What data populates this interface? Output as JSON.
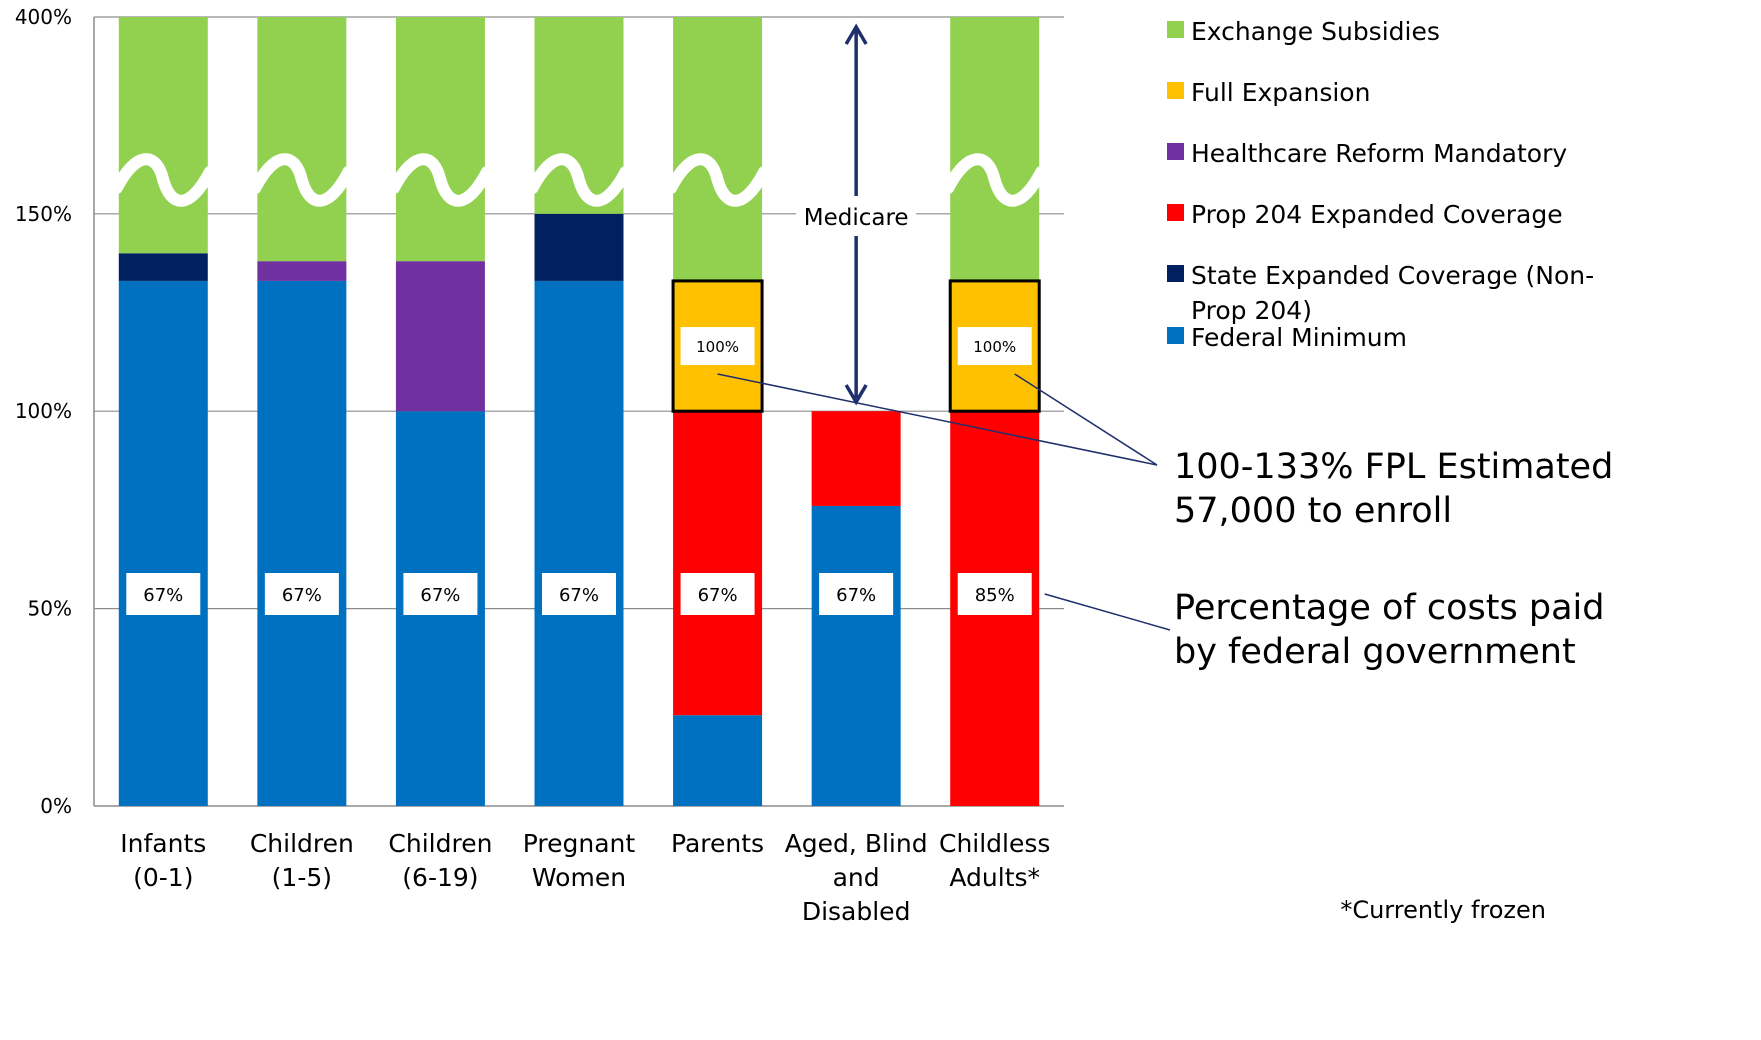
{
  "chart_data": {
    "type": "bar",
    "stacked": true,
    "categories": [
      [
        "Infants",
        "(0-1)"
      ],
      [
        "Children",
        "(1-5)"
      ],
      [
        "Children",
        "(6-19)"
      ],
      [
        "Pregnant",
        "Women"
      ],
      [
        "Parents"
      ],
      [
        "Aged, Blind",
        "and",
        "Disabled"
      ],
      [
        "Childless",
        "Adults*"
      ]
    ],
    "y_ticks": [
      "0%",
      "50%",
      "100%",
      "150%",
      "400%"
    ],
    "y_scale": "broken axis: 0-150% linear, axis break, top labeled 400%",
    "grid": true,
    "legend_position": "right",
    "series": [
      {
        "name": "Federal Minimum",
        "color": "#0070C0",
        "values": [
          133,
          133,
          100,
          133,
          23,
          76,
          0
        ]
      },
      {
        "name": "State Expanded Coverage (Non-Prop 204)",
        "color": "#002060",
        "values": [
          7,
          0,
          0,
          17,
          0,
          0,
          0
        ]
      },
      {
        "name": "Prop 204 Expanded Coverage",
        "color": "#FF0000",
        "values": [
          0,
          0,
          0,
          0,
          77,
          24,
          100
        ]
      },
      {
        "name": "Healthcare Reform Mandatory",
        "color": "#7030A0",
        "values": [
          0,
          5,
          38,
          0,
          0,
          0,
          0
        ]
      },
      {
        "name": "Full Expansion",
        "color": "#FFC000",
        "values": [
          0,
          0,
          0,
          0,
          33,
          0,
          33
        ]
      },
      {
        "name": "Exchange Subsidies",
        "color": "#92D050",
        "values": [
          260,
          262,
          262,
          250,
          267,
          0,
          267
        ]
      }
    ],
    "legend_order": [
      "Exchange Subsidies",
      "Full Expansion",
      "Healthcare Reform Mandatory",
      "Prop 204 Expanded Coverage",
      [
        "State Expanded Coverage (Non-",
        "Prop 204)"
      ],
      "Federal Minimum"
    ],
    "federal_share_labels": [
      "67%",
      "67%",
      "67%",
      "67%",
      "67%",
      "67%",
      "85%"
    ],
    "full_expansion_labels": [
      null,
      null,
      null,
      null,
      "100%",
      null,
      "100%"
    ],
    "annotations": {
      "medicare": "Medicare",
      "fpl_note": [
        "100-133% FPL Estimated",
        "57,000 to enroll"
      ],
      "federal_note": [
        "Percentage of costs paid",
        "by federal government"
      ],
      "footnote": "*Currently frozen"
    }
  }
}
